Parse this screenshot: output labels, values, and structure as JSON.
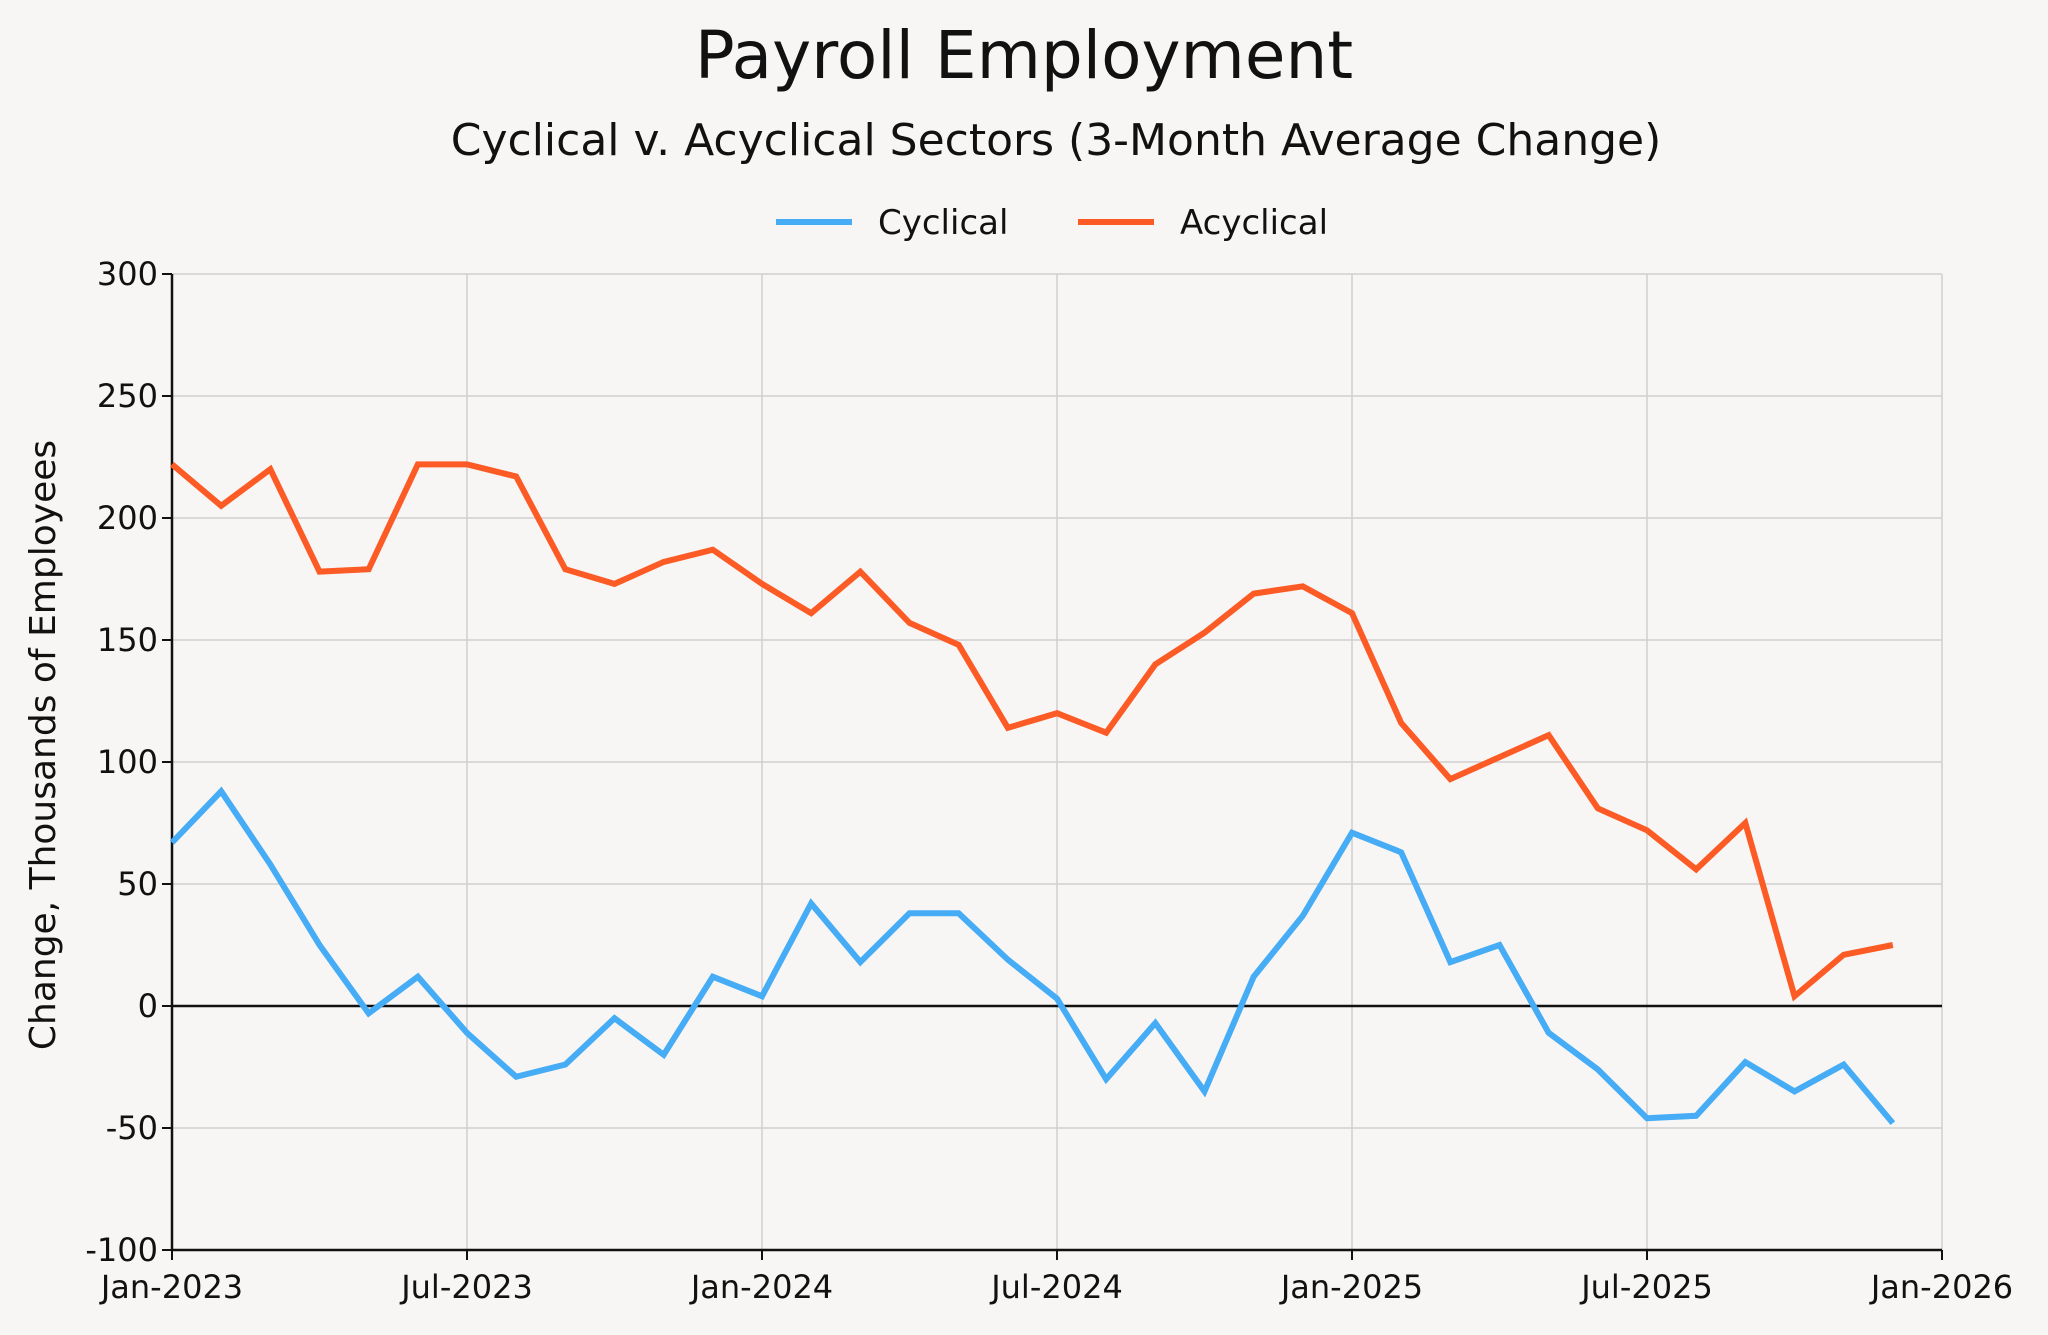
{
  "chart_data": {
    "type": "line",
    "title": "Payroll Employment",
    "subtitle": "Cyclical v. Acyclical Sectors (3-Month Average Change)",
    "ylabel": "Change, Thousands of Employees",
    "xlabel": "",
    "x": [
      "2023-01",
      "2023-02",
      "2023-03",
      "2023-04",
      "2023-05",
      "2023-06",
      "2023-07",
      "2023-08",
      "2023-09",
      "2023-10",
      "2023-11",
      "2023-12",
      "2024-01",
      "2024-02",
      "2024-03",
      "2024-04",
      "2024-05",
      "2024-06",
      "2024-07",
      "2024-08",
      "2024-09",
      "2024-10",
      "2024-11",
      "2024-12",
      "2025-01",
      "2025-02",
      "2025-03",
      "2025-04",
      "2025-05",
      "2025-06",
      "2025-07",
      "2025-08",
      "2025-09",
      "2025-10",
      "2025-11",
      "2025-12"
    ],
    "series": [
      {
        "name": "Cyclical",
        "color": "#45acf5",
        "values": [
          67,
          88,
          58,
          25,
          -3,
          12,
          -11,
          -29,
          -24,
          -5,
          -20,
          12,
          4,
          42,
          18,
          38,
          38,
          19,
          3,
          -30,
          -7,
          -35,
          12,
          37,
          71,
          63,
          18,
          25,
          -11,
          -26,
          -46,
          -45,
          -23,
          -35,
          -24,
          -48
        ]
      },
      {
        "name": "Acyclical",
        "color": "#fc5b25",
        "values": [
          222,
          205,
          220,
          178,
          179,
          222,
          222,
          217,
          179,
          173,
          182,
          187,
          173,
          161,
          178,
          157,
          148,
          114,
          120,
          112,
          140,
          153,
          169,
          172,
          161,
          116,
          93,
          102,
          111,
          81,
          72,
          56,
          75,
          4,
          21,
          25
        ]
      }
    ],
    "ylim": [
      -100,
      300
    ],
    "yticks": [
      -100,
      -50,
      0,
      50,
      100,
      150,
      200,
      250,
      300
    ],
    "xlim": [
      "2023-01",
      "2026-01"
    ],
    "xticks": [
      {
        "value": "2023-01",
        "label": "Jan-2023"
      },
      {
        "value": "2023-07",
        "label": "Jul-2023"
      },
      {
        "value": "2024-01",
        "label": "Jan-2024"
      },
      {
        "value": "2024-07",
        "label": "Jul-2024"
      },
      {
        "value": "2025-01",
        "label": "Jan-2025"
      },
      {
        "value": "2025-07",
        "label": "Jul-2025"
      },
      {
        "value": "2026-01",
        "label": "Jan-2026"
      }
    ],
    "grid": true,
    "legend_position": "top-center"
  },
  "colors": {
    "background": "#f8f6f4",
    "grid": "#cfcfcf",
    "axis": "#111111",
    "zero_line": "#111111"
  }
}
